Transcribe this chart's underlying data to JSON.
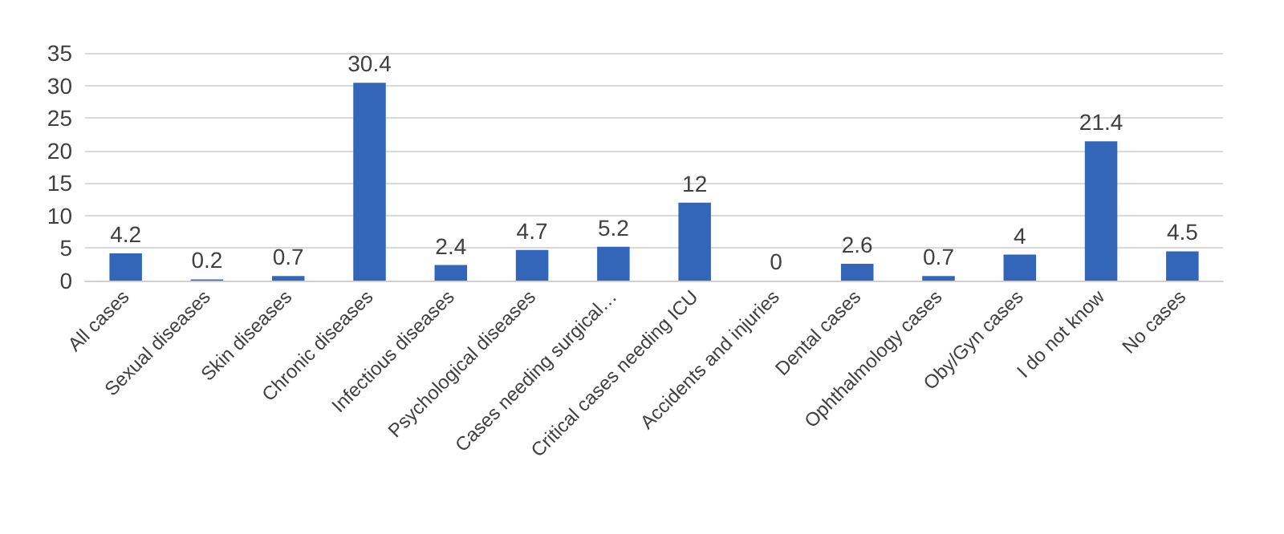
{
  "chart_data": {
    "type": "bar",
    "categories": [
      "All cases",
      "Sexual diseases",
      "Skin diseases",
      "Chronic diseases",
      "Infectious diseases",
      "Psychological diseases",
      "Cases needing surgical…",
      "Critical cases needing ICU",
      "Accidents and injuries",
      "Dental cases",
      "Ophthalmology cases",
      "Oby/Gyn cases",
      "I do not know",
      "No cases"
    ],
    "values": [
      4.2,
      0.2,
      0.7,
      30.4,
      2.4,
      4.7,
      5.2,
      12,
      0,
      2.6,
      0.7,
      4,
      21.4,
      4.5
    ],
    "color": "#3366b8",
    "ylim": [
      0,
      35
    ],
    "yticks": [
      0,
      5,
      10,
      15,
      20,
      25,
      30,
      35
    ],
    "grid": "y",
    "data_labels": true
  }
}
